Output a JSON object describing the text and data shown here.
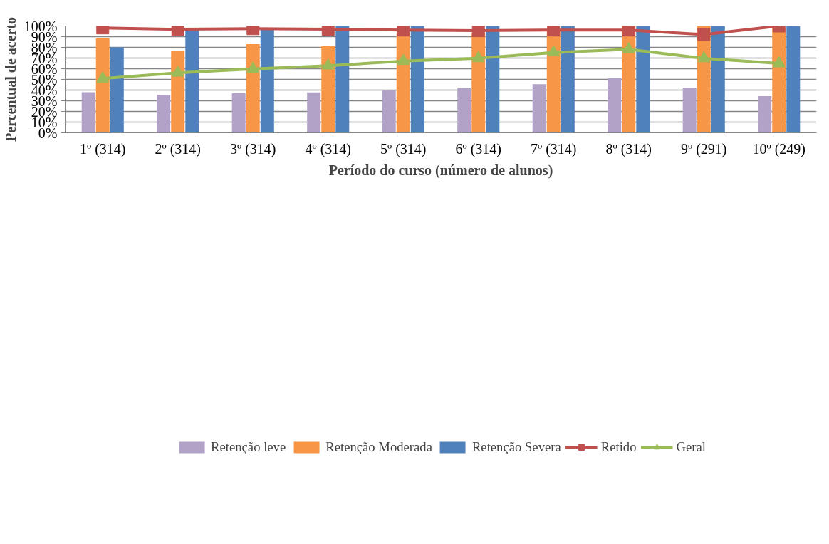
{
  "chart_data": {
    "type": "bar",
    "xlabel": "Período do curso (número de alunos)",
    "ylabel": "Percentual de acerto",
    "categories": [
      "1º (314)",
      "2º (314)",
      "3º (314)",
      "4º (314)",
      "5º (314)",
      "6º (314)",
      "7º (314)",
      "8º (314)",
      "9º (291)",
      "10º (249)"
    ],
    "series": [
      {
        "name": "Retenção leve",
        "color": "#b2a2c7",
        "values": [
          38,
          35.5,
          37,
          37.8,
          39.8,
          41.8,
          45.5,
          51,
          42.3,
          34.3
        ]
      },
      {
        "name": "Retenção Moderada",
        "color": "#f79646",
        "values": [
          88.3,
          76.8,
          83,
          81,
          93.7,
          93.3,
          95,
          100,
          100,
          98
        ]
      },
      {
        "name": "Retenção Severa",
        "color": "#4f81bd",
        "values": [
          80,
          97.5,
          98,
          100,
          100,
          100,
          100,
          100,
          100,
          100
        ]
      },
      {
        "name": "Retido",
        "type": "line",
        "marker": "square",
        "color": "#c0504d",
        "values": [
          98.2,
          96.9,
          97.5,
          97,
          96.2,
          95.6,
          96.2,
          96.2,
          92,
          100
        ]
      },
      {
        "name": "Geral",
        "type": "line",
        "marker": "triangle",
        "color": "#9bbb59",
        "values": [
          50.8,
          56.2,
          59.9,
          62.9,
          67.2,
          69.8,
          75.2,
          78.2,
          69.7,
          65
        ]
      }
    ],
    "ylim": [
      0,
      100
    ],
    "yticks": [
      {
        "value": 0,
        "label": "0%"
      },
      {
        "value": 10,
        "label": "10%"
      },
      {
        "value": 20,
        "label": "20%"
      },
      {
        "value": 30,
        "label": "30%"
      },
      {
        "value": 40,
        "label": "40%"
      },
      {
        "value": 50,
        "label": "50%"
      },
      {
        "value": 60,
        "label": "60%"
      },
      {
        "value": 70,
        "label": "70%"
      },
      {
        "value": 80,
        "label": "80%"
      },
      {
        "value": 90,
        "label": "90%"
      },
      {
        "value": 100,
        "label": "100%"
      }
    ],
    "grid": "y",
    "legend": "bottom"
  }
}
